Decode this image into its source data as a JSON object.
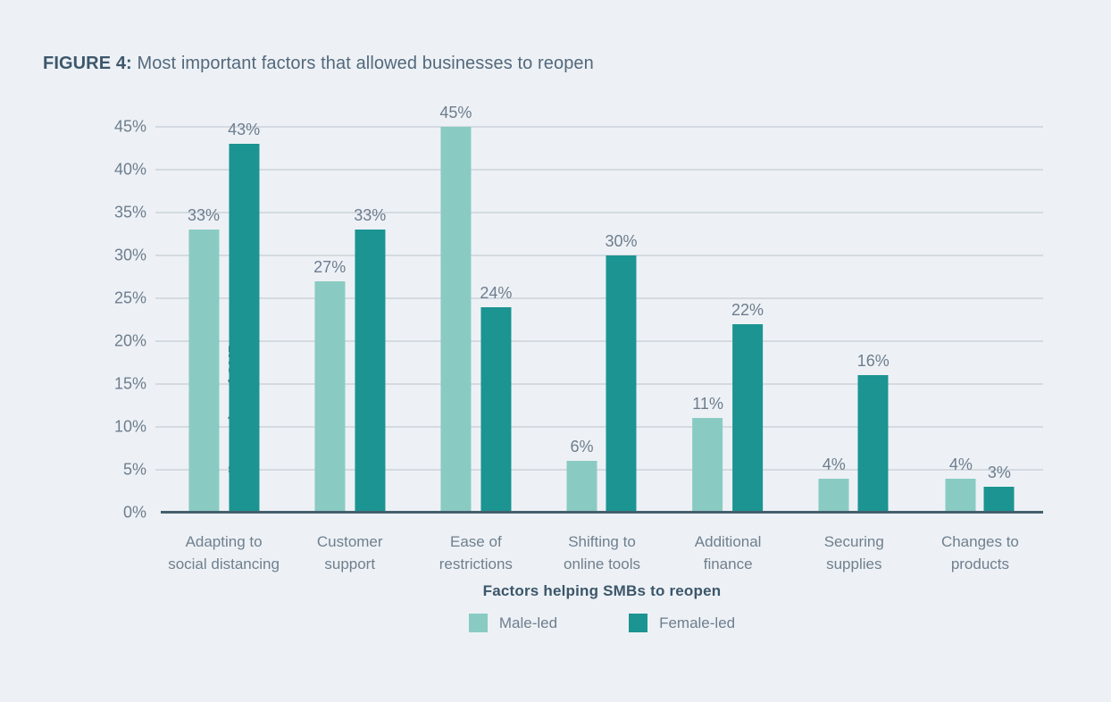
{
  "figure": {
    "label": "FIGURE 4:",
    "caption": " Most important factors that allowed businesses to reopen"
  },
  "colors": {
    "background": "#edf1f5",
    "male_led": "#89cbc2",
    "female_led": "#1b9492",
    "gridline": "#d4dae1",
    "axis_line": "#44606c",
    "label_text": "#6d7d8e",
    "title_text": "#3d576b"
  },
  "chart_data": {
    "type": "bar",
    "title": "Most important factors that allowed businesses to reopen",
    "categories": [
      "Adapting to\nsocial distancing",
      "Customer\nsupport",
      "Ease of\nrestrictions",
      "Shifting to\nonline tools",
      "Additional\nfinance",
      "Securing\nsupplies",
      "Changes to\nproducts"
    ],
    "series": [
      {
        "name": "Male-led",
        "color": "#89cbc2",
        "values": [
          33,
          27,
          45,
          6,
          11,
          4,
          4
        ]
      },
      {
        "name": "Female-led",
        "color": "#1b9492",
        "values": [
          43,
          33,
          24,
          30,
          22,
          16,
          3
        ]
      }
    ],
    "value_suffix": "%",
    "data_labels": true,
    "xlabel": "Factors helping SMBs to reopen",
    "ylabel": "Proportion of SMBs",
    "yticks": [
      0,
      5,
      10,
      15,
      20,
      25,
      30,
      35,
      40,
      45
    ],
    "ylim": [
      0,
      50
    ],
    "grid": true,
    "legend_position": "bottom-center"
  }
}
